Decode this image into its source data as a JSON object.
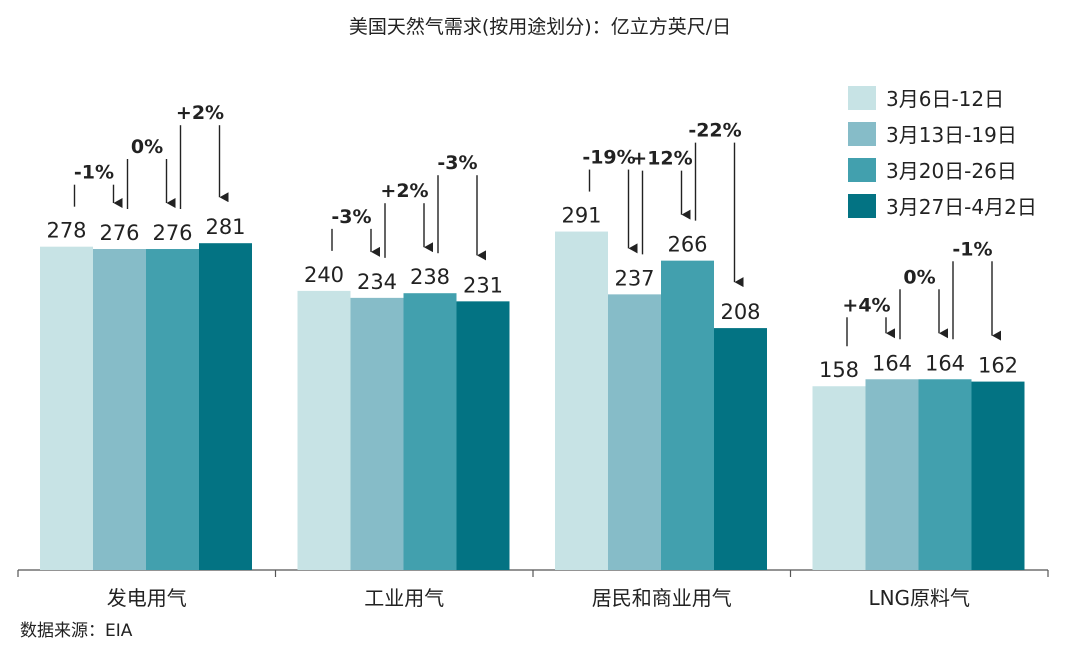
{
  "title": "美国天然气需求(按用途划分)：亿立方英尺/日",
  "source": "数据来源：EIA",
  "colors": [
    "#c7e3e5",
    "#86bcc8",
    "#42a0ae",
    "#037383"
  ],
  "chart_data": {
    "type": "bar",
    "title": "美国天然气需求(按用途划分)：亿立方英尺/日",
    "categories": [
      "发电用气",
      "工业用气",
      "居民和商业用气",
      "LNG原料气"
    ],
    "series": [
      {
        "name": "3月6日-12日",
        "values": [
          278,
          240,
          291,
          158
        ]
      },
      {
        "name": "3月13日-19日",
        "values": [
          276,
          234,
          237,
          164
        ]
      },
      {
        "name": "3月20日-26日",
        "values": [
          276,
          238,
          266,
          164
        ]
      },
      {
        "name": "3月27日-4月2日",
        "values": [
          281,
          231,
          208,
          162
        ]
      }
    ],
    "changes": [
      [
        "-1%",
        "0%",
        "+2%"
      ],
      [
        "-3%",
        "+2%",
        "-3%"
      ],
      [
        "-19%",
        "+12%",
        "-22%"
      ],
      [
        "+4%",
        "0%",
        "-1%"
      ]
    ],
    "ylim": [
      0,
      320
    ],
    "legend": "top-right",
    "grid": false
  }
}
